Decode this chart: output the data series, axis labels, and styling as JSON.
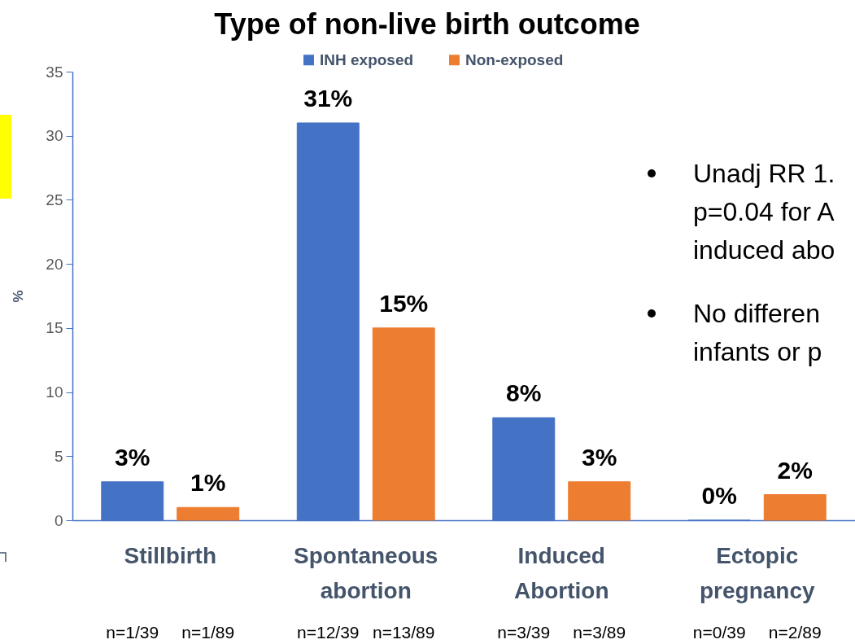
{
  "chart_data": {
    "type": "bar",
    "title": "Type of non-live birth outcome",
    "ylabel": "%",
    "categories": [
      "Stillbirth",
      "Spontaneous abortion",
      "Induced Abortion",
      "Ectopic pregnancy"
    ],
    "series": [
      {
        "name": "INH exposed",
        "color": "#4472c4",
        "values": [
          3,
          31,
          8,
          0
        ],
        "value_labels": [
          "3%",
          "31%",
          "8%",
          "0%"
        ]
      },
      {
        "name": "Non-exposed",
        "color": "#ed7d31",
        "values": [
          1,
          15,
          3,
          2
        ],
        "value_labels": [
          "1%",
          "15%",
          "3%",
          "2%"
        ]
      }
    ],
    "ylim": [
      0,
      35
    ],
    "yticks": [
      0,
      5,
      10,
      15,
      20,
      25,
      30,
      35
    ],
    "legend": "top",
    "annotations": [
      "n=1/39",
      "n=1/89",
      "n=12/39",
      "n=13/89",
      "n=3/39",
      "n=3/89",
      "n=0/39",
      "n=2/89",
      "Unadj RR 1.\np=0.04 for A\ninduced abo",
      "No differen\ninfants or p"
    ]
  }
}
